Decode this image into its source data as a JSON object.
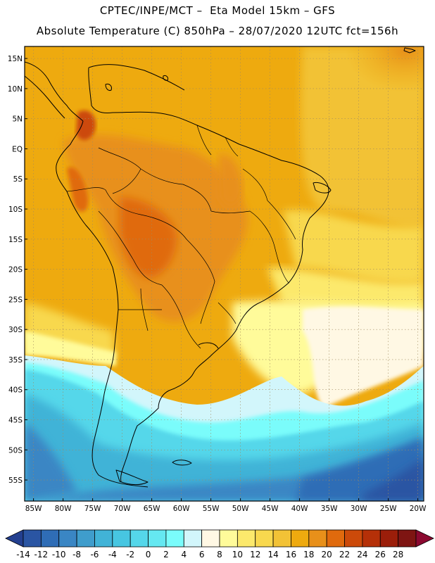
{
  "header": {
    "line1": "CPTEC/INPE/MCT –  Eta Model 15km – GFS",
    "line2": "Absolute Temperature (C) 850hPa – 28/07/2020 12UTC fct=156h"
  },
  "map": {
    "lat_labels": [
      "15N",
      "10N",
      "5N",
      "EQ",
      "5S",
      "10S",
      "15S",
      "20S",
      "25S",
      "30S",
      "35S",
      "40S",
      "45S",
      "50S",
      "55S"
    ],
    "lon_labels": [
      "85W",
      "80W",
      "75W",
      "70W",
      "65W",
      "60W",
      "55W",
      "50W",
      "45W",
      "40W",
      "35W",
      "30W",
      "25W",
      "20W"
    ]
  },
  "colorbar": {
    "labels": [
      "-14",
      "-12",
      "-10",
      "-8",
      "-6",
      "-4",
      "-2",
      "0",
      "2",
      "4",
      "6",
      "8",
      "10",
      "12",
      "14",
      "16",
      "18",
      "20",
      "22",
      "24",
      "26",
      "28"
    ],
    "colors": [
      "#233f8f",
      "#2a55a3",
      "#2f6db6",
      "#3a86c4",
      "#3f9dcc",
      "#41b3d7",
      "#47c6e1",
      "#55d7ea",
      "#65e8f1",
      "#7afcfb",
      "#d2f6fb",
      "#fff8e4",
      "#fffb9a",
      "#fce96c",
      "#f8d84e",
      "#f2c236",
      "#eeaa0f",
      "#e8901a",
      "#e06a0d",
      "#cc4a0a",
      "#b53008",
      "#9b1e0a",
      "#7e1512",
      "#8b0930"
    ]
  },
  "colors": {
    "frame": "#000000",
    "grid": "#b0a080",
    "coast": "#000000"
  }
}
